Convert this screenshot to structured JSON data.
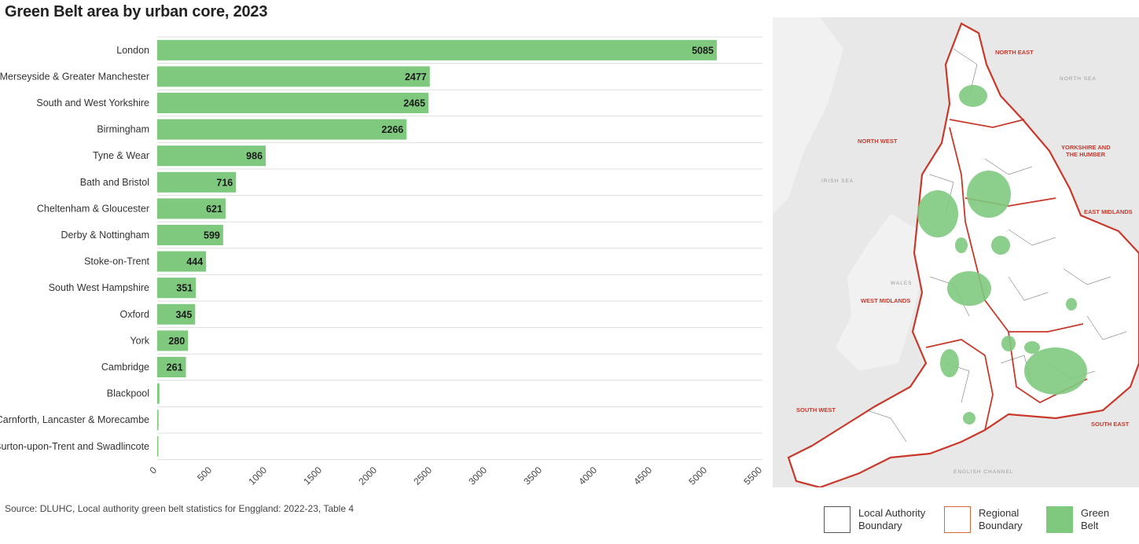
{
  "title": "Green Belt area by urban core, 2023",
  "source": "Source: DLUHC, Local authority green belt statistics for Enggland: 2022-23, Table 4",
  "colors": {
    "bar": "#7fc97f",
    "grid": "#dddddd",
    "region_boundary": "#c8392b",
    "map_land": "#ffffff",
    "map_sea": "#e9e9e9"
  },
  "chart_data": {
    "type": "bar",
    "orientation": "horizontal",
    "title": "Green Belt area by urban core, 2023",
    "categories": [
      "London",
      "Merseyside & Greater Manchester",
      "South and West Yorkshire",
      "Birmingham",
      "Tyne & Wear",
      "Bath and Bristol",
      "Cheltenham & Gloucester",
      "Derby & Nottingham",
      "Stoke-on-Trent",
      "South West Hampshire",
      "Oxford",
      "York",
      "Cambridge",
      "Blackpool",
      "Carnforth, Lancaster & Morecambe",
      "Burton-upon-Trent and Swadlincote"
    ],
    "values": [
      5085,
      2477,
      2465,
      2266,
      986,
      716,
      621,
      599,
      444,
      351,
      345,
      280,
      261,
      20,
      12,
      8
    ],
    "value_labels": [
      "5085",
      "2477",
      "2465",
      "2266",
      "986",
      "716",
      "621",
      "599",
      "444",
      "351",
      "345",
      "280",
      "261",
      "",
      "",
      ""
    ],
    "xticks": [
      0,
      500,
      1000,
      1500,
      2000,
      2500,
      3000,
      3500,
      4000,
      4500,
      5000,
      5500
    ],
    "xlim": [
      0,
      5500
    ],
    "grid": true
  },
  "map": {
    "region_labels": [
      "NORTH EAST",
      "NORTH WEST",
      "YORKSHIRE AND",
      "THE HUMBER",
      "EAST MIDLANDS",
      "WEST MIDLANDS",
      "SOUTH WEST",
      "SOUTH EAST"
    ],
    "sea_labels": [
      "NORTH SEA",
      "IRISH SEA",
      "ENGLISH CHANNEL",
      "WALES"
    ]
  },
  "legend": [
    {
      "line1": "Local Authority",
      "line2": "Boundary",
      "swatch": "local"
    },
    {
      "line1": "Regional",
      "line2": "Boundary",
      "swatch": "regional"
    },
    {
      "line1": "Green",
      "line2": "Belt",
      "swatch": "green"
    }
  ]
}
